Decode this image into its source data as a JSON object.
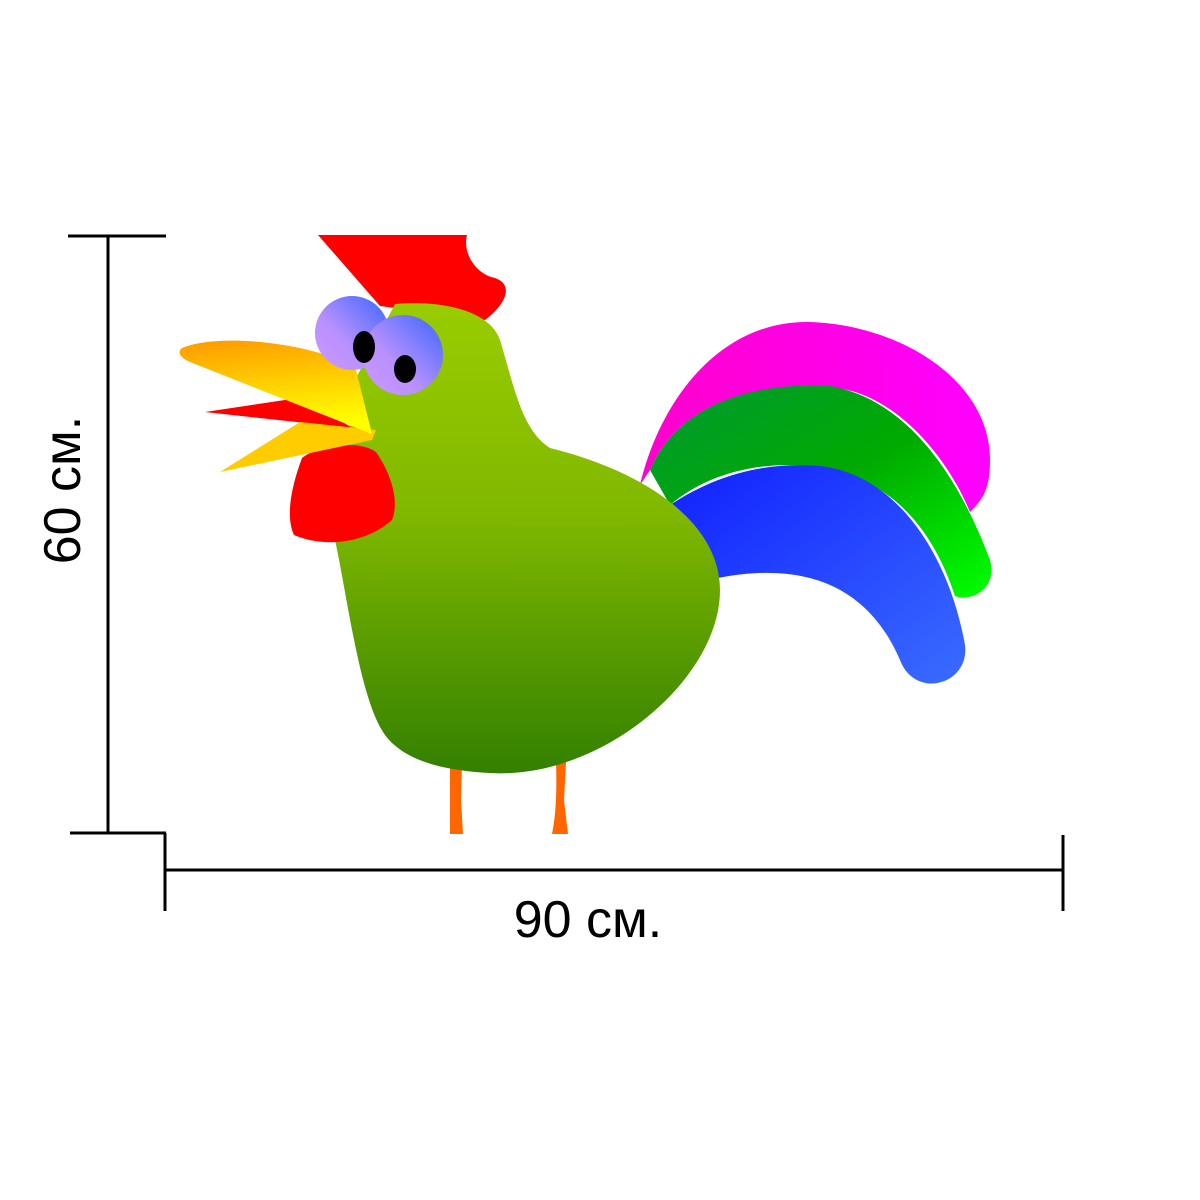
{
  "dimensions": {
    "width_label": "90 см.",
    "height_label": "60 см."
  },
  "colors": {
    "comb": "#ff0000",
    "body_top": "#99cc00",
    "body_bottom": "#338000",
    "tail_magenta": "#ff00cc",
    "tail_green": "#00cc00",
    "tail_blue": "#1a33ff",
    "legs": "#ff6600",
    "beak": "#ffaa00"
  }
}
